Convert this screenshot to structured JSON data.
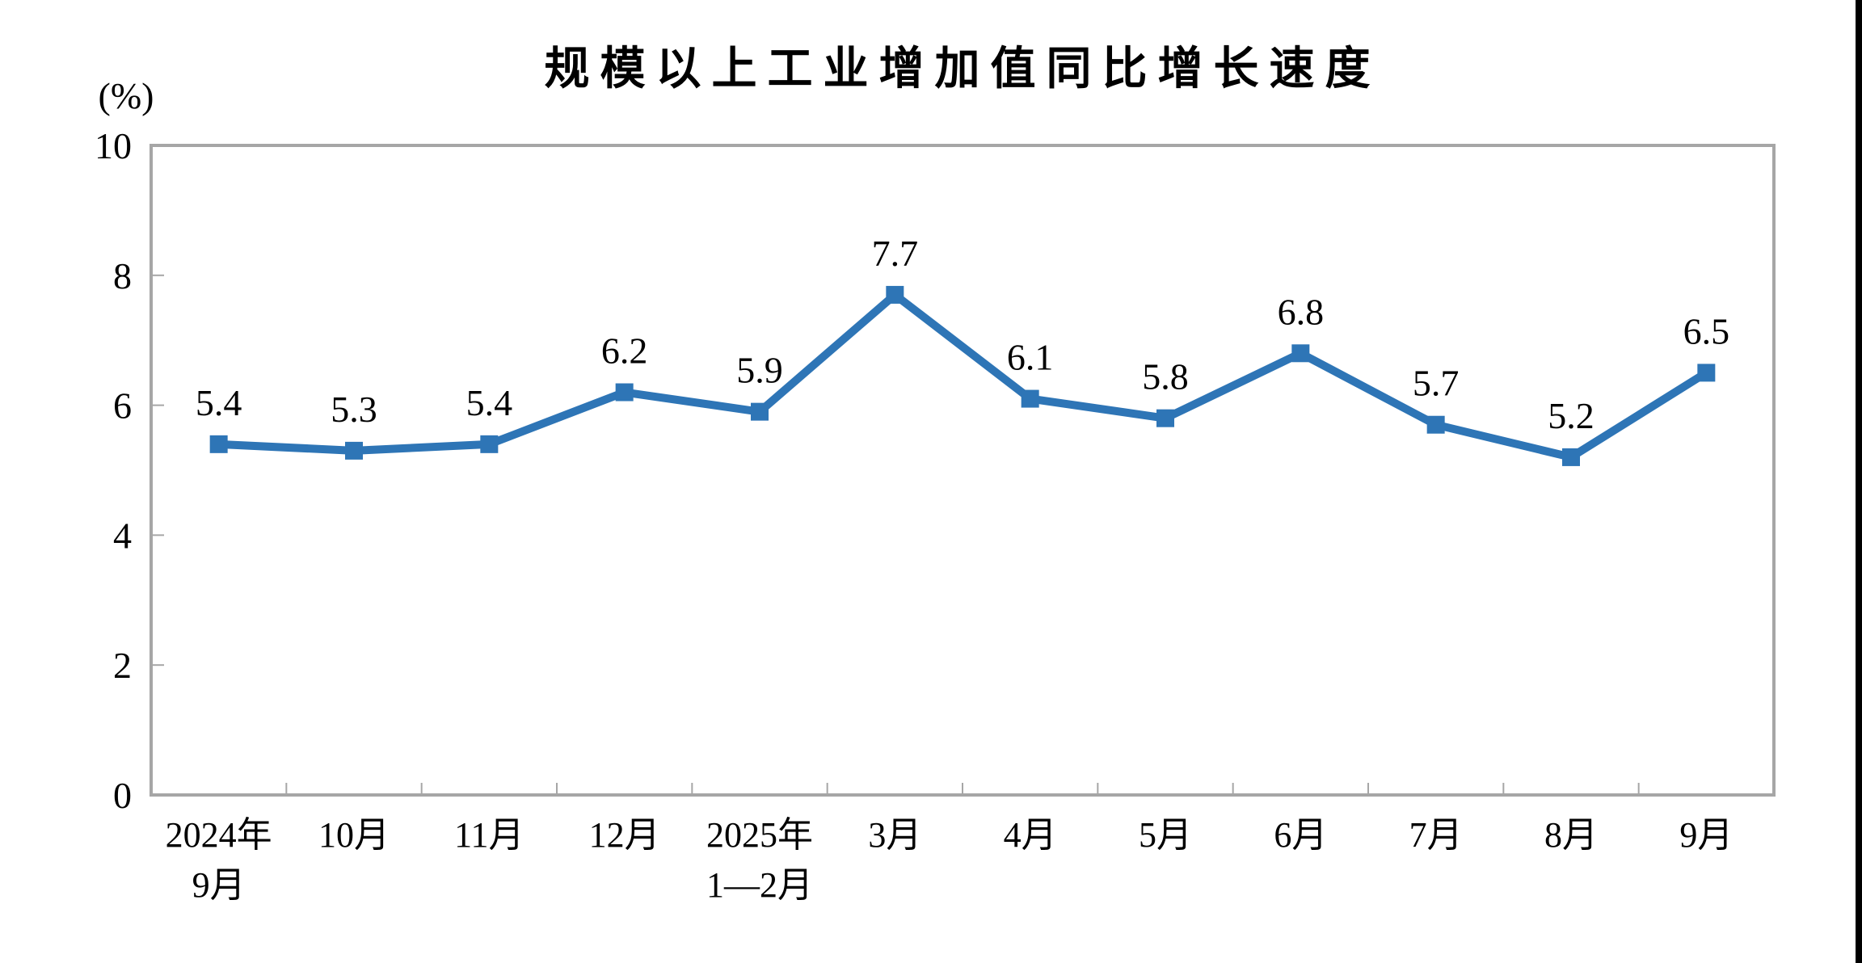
{
  "chart_data": {
    "type": "line",
    "title": "规模以上工业增加值同比增长速度",
    "unit_label": "(%)",
    "categories": [
      [
        "2024年",
        "9月"
      ],
      [
        "10月"
      ],
      [
        "11月"
      ],
      [
        "12月"
      ],
      [
        "2025年",
        "1—2月"
      ],
      [
        "3月"
      ],
      [
        "4月"
      ],
      [
        "5月"
      ],
      [
        "6月"
      ],
      [
        "7月"
      ],
      [
        "8月"
      ],
      [
        "9月"
      ]
    ],
    "values": [
      5.4,
      5.3,
      5.4,
      6.2,
      5.9,
      7.7,
      6.1,
      5.8,
      6.8,
      5.7,
      5.2,
      6.5
    ],
    "data_labels": [
      "5.4",
      "5.3",
      "5.4",
      "6.2",
      "5.9",
      "7.7",
      "6.1",
      "5.8",
      "6.8",
      "5.7",
      "5.2",
      "6.5"
    ],
    "y_axis": {
      "min": 0,
      "max": 10,
      "tick_step": 2,
      "tick_labels": [
        "0",
        "2",
        "4",
        "6",
        "8",
        "10"
      ]
    },
    "grid": false,
    "legend": "none",
    "marker": "square",
    "colors": {
      "line": "#2E75B6",
      "marker": "#2E75B6",
      "axis": "#A6A6A6",
      "text": "#000000"
    }
  }
}
